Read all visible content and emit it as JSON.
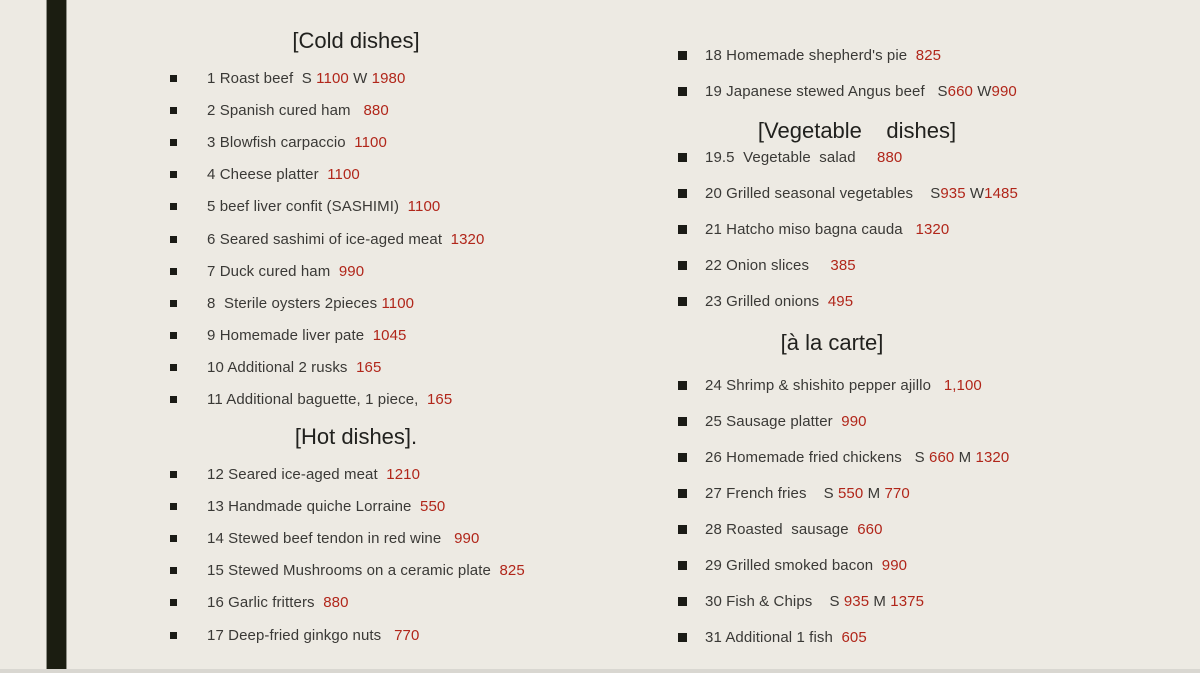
{
  "theme": {
    "background": "#edeae3",
    "accent_bar": "#1b1d11",
    "bottom_strip": "#d9d7d1",
    "text_color": "#3a3936",
    "title_color": "#21211e",
    "price_color": "#b1261a",
    "bullet_color": "#1b1b16"
  },
  "menu": {
    "left": {
      "blocks": [
        {
          "type": "title",
          "variant": "cold",
          "text": "[Cold dishes]"
        },
        {
          "type": "item",
          "parts": [
            {
              "text": "1 Roast beef  S ",
              "price": false
            },
            {
              "text": "1100",
              "price": true
            },
            {
              "text": " W ",
              "price": false
            },
            {
              "text": "1980",
              "price": true
            }
          ]
        },
        {
          "type": "item",
          "parts": [
            {
              "text": "2 Spanish cured ham   ",
              "price": false
            },
            {
              "text": "880",
              "price": true
            }
          ]
        },
        {
          "type": "item",
          "parts": [
            {
              "text": "3 Blowfish carpaccio  ",
              "price": false
            },
            {
              "text": "1100",
              "price": true
            }
          ]
        },
        {
          "type": "item",
          "parts": [
            {
              "text": "4 Cheese platter  ",
              "price": false
            },
            {
              "text": "1100",
              "price": true
            }
          ]
        },
        {
          "type": "item",
          "parts": [
            {
              "text": "5 beef liver confit (SASHIMI)  ",
              "price": false
            },
            {
              "text": "1100",
              "price": true
            }
          ]
        },
        {
          "type": "item",
          "parts": [
            {
              "text": "6 Seared sashimi of ice-aged meat  ",
              "price": false
            },
            {
              "text": "1320",
              "price": true
            }
          ]
        },
        {
          "type": "item",
          "parts": [
            {
              "text": "7 Duck cured ham  ",
              "price": false
            },
            {
              "text": "990",
              "price": true
            }
          ]
        },
        {
          "type": "item",
          "parts": [
            {
              "text": "8  Sterile oysters 2pieces ",
              "price": false
            },
            {
              "text": "1100",
              "price": true
            }
          ]
        },
        {
          "type": "item",
          "parts": [
            {
              "text": "9 Homemade liver pate  ",
              "price": false
            },
            {
              "text": "1045",
              "price": true
            }
          ]
        },
        {
          "type": "item",
          "parts": [
            {
              "text": "10 Additional 2 rusks  ",
              "price": false
            },
            {
              "text": "165",
              "price": true
            }
          ]
        },
        {
          "type": "item",
          "parts": [
            {
              "text": "11 Additional baguette, 1 piece,  ",
              "price": false
            },
            {
              "text": "165",
              "price": true
            }
          ]
        },
        {
          "type": "title",
          "variant": "hot",
          "text": "[Hot dishes]."
        },
        {
          "type": "item",
          "parts": [
            {
              "text": "12 Seared ice-aged meat  ",
              "price": false
            },
            {
              "text": "1210",
              "price": true
            }
          ]
        },
        {
          "type": "item",
          "parts": [
            {
              "text": "13 Handmade quiche Lorraine  ",
              "price": false
            },
            {
              "text": "550",
              "price": true
            }
          ]
        },
        {
          "type": "item",
          "parts": [
            {
              "text": "14 Stewed beef tendon in red wine   ",
              "price": false
            },
            {
              "text": "990",
              "price": true
            }
          ]
        },
        {
          "type": "item",
          "parts": [
            {
              "text": "15 Stewed Mushrooms on a ceramic plate  ",
              "price": false
            },
            {
              "text": "825",
              "price": true
            }
          ]
        },
        {
          "type": "item",
          "parts": [
            {
              "text": "16 Garlic fritters  ",
              "price": false
            },
            {
              "text": "880",
              "price": true
            }
          ]
        },
        {
          "type": "item",
          "parts": [
            {
              "text": "17 Deep-fried ginkgo nuts   ",
              "price": false
            },
            {
              "text": "770",
              "price": true
            }
          ]
        }
      ]
    },
    "right": {
      "blocks": [
        {
          "type": "item",
          "parts": [
            {
              "text": "18 Homemade shepherd's pie  ",
              "price": false
            },
            {
              "text": "825",
              "price": true
            }
          ]
        },
        {
          "type": "item",
          "parts": [
            {
              "text": "19 Japanese stewed Angus beef   S",
              "price": false
            },
            {
              "text": "660",
              "price": true
            },
            {
              "text": " W",
              "price": false
            },
            {
              "text": "990",
              "price": true
            }
          ]
        },
        {
          "type": "title",
          "variant": "veg",
          "text": "[Vegetable    dishes]"
        },
        {
          "type": "item",
          "parts": [
            {
              "text": "19.5  Vegetable  salad     ",
              "price": false
            },
            {
              "text": "880",
              "price": true
            }
          ]
        },
        {
          "type": "item",
          "parts": [
            {
              "text": "20 Grilled seasonal vegetables    S",
              "price": false
            },
            {
              "text": "935",
              "price": true
            },
            {
              "text": " W",
              "price": false
            },
            {
              "text": "1485",
              "price": true
            }
          ]
        },
        {
          "type": "item",
          "parts": [
            {
              "text": "21 Hatcho miso bagna cauda   ",
              "price": false
            },
            {
              "text": "1320",
              "price": true
            }
          ]
        },
        {
          "type": "item",
          "parts": [
            {
              "text": "22 Onion slices     ",
              "price": false
            },
            {
              "text": "385",
              "price": true
            }
          ]
        },
        {
          "type": "item",
          "parts": [
            {
              "text": "23 Grilled onions  ",
              "price": false
            },
            {
              "text": "495",
              "price": true
            }
          ]
        },
        {
          "type": "title",
          "variant": "carte",
          "text": "[à la carte]"
        },
        {
          "type": "item",
          "parts": [
            {
              "text": "24 Shrimp & shishito pepper ajillo   ",
              "price": false
            },
            {
              "text": "1,100",
              "price": true
            }
          ]
        },
        {
          "type": "item",
          "parts": [
            {
              "text": "25 Sausage platter  ",
              "price": false
            },
            {
              "text": "990",
              "price": true
            }
          ]
        },
        {
          "type": "item",
          "parts": [
            {
              "text": "26 Homemade fried chickens   S ",
              "price": false
            },
            {
              "text": "660",
              "price": true
            },
            {
              "text": " M ",
              "price": false
            },
            {
              "text": "1320",
              "price": true
            }
          ]
        },
        {
          "type": "item",
          "parts": [
            {
              "text": "27 French fries    S ",
              "price": false
            },
            {
              "text": "550",
              "price": true
            },
            {
              "text": " M ",
              "price": false
            },
            {
              "text": "770",
              "price": true
            }
          ]
        },
        {
          "type": "item",
          "parts": [
            {
              "text": "28 Roasted  sausage  ",
              "price": false
            },
            {
              "text": "660",
              "price": true
            }
          ]
        },
        {
          "type": "item",
          "parts": [
            {
              "text": "29 Grilled smoked bacon  ",
              "price": false
            },
            {
              "text": "990",
              "price": true
            }
          ]
        },
        {
          "type": "item",
          "parts": [
            {
              "text": "30 Fish & Chips    S ",
              "price": false
            },
            {
              "text": "935",
              "price": true
            },
            {
              "text": " M ",
              "price": false
            },
            {
              "text": "1375",
              "price": true
            }
          ]
        },
        {
          "type": "item",
          "parts": [
            {
              "text": "31 Additional 1 fish  ",
              "price": false
            },
            {
              "text": "605",
              "price": true
            }
          ]
        }
      ]
    }
  }
}
